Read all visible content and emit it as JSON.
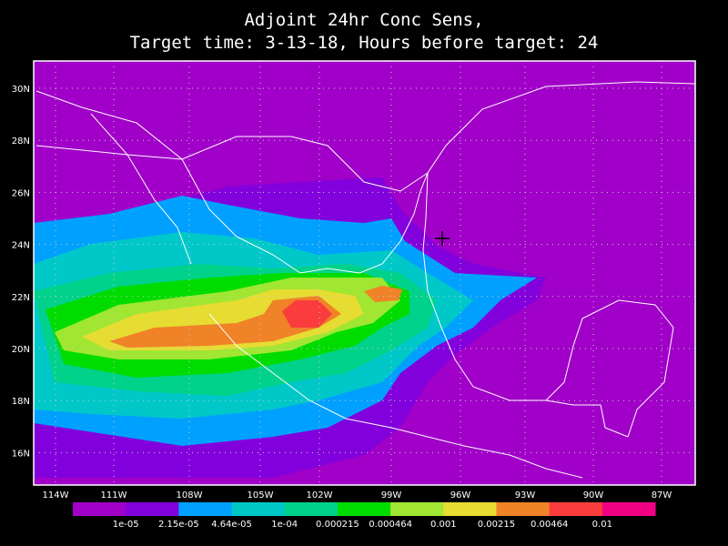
{
  "title": [
    "Adjoint 24hr Conc Sens,",
    "Target time: 3-13-18, Hours before target: 24"
  ],
  "map": {
    "lat_labels": [
      "30N",
      "28N",
      "26N",
      "24N",
      "22N",
      "20N",
      "18N",
      "16N"
    ],
    "lon_labels": [
      "114W",
      "111W",
      "108W",
      "105W",
      "102W",
      "99W",
      "96W",
      "93W",
      "90W",
      "87W"
    ]
  },
  "colorbar": {
    "colors": [
      "#a000c8",
      "#8200dc",
      "#00a0ff",
      "#00c8c8",
      "#00d28c",
      "#00dc00",
      "#a0e632",
      "#e6dc32",
      "#f08228",
      "#fa3c3c",
      "#f00082"
    ],
    "labels": [
      "1e-05",
      "2.15e-05",
      "4.64e-05",
      "1e-04",
      "0.000215",
      "0.000464",
      "0.001",
      "0.00215",
      "0.00464",
      "0.01"
    ]
  }
}
